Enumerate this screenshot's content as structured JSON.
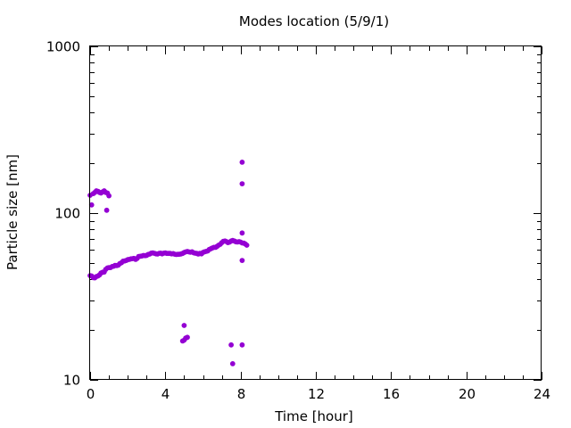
{
  "chart_data": {
    "type": "scatter",
    "title": "Modes location (5/9/1)",
    "xlabel": "Time [hour]",
    "ylabel": "Particle size [nm]",
    "xlim": [
      0,
      24
    ],
    "ylim": [
      10,
      1000
    ],
    "yscale": "log",
    "grid": false,
    "x_ticks": [
      0,
      4,
      8,
      12,
      16,
      20,
      24
    ],
    "y_ticks": [
      10,
      100,
      1000
    ],
    "x_tick_labels": [
      "0",
      "4",
      "8",
      "12",
      "16",
      "20",
      "24"
    ],
    "y_tick_labels": [
      "10",
      "100",
      "1000"
    ],
    "marker_color": "#9400d3",
    "series": [
      {
        "points": [
          [
            0.0,
            42.2
          ],
          [
            0.08,
            42.0
          ],
          [
            0.17,
            41.0
          ],
          [
            0.25,
            40.9
          ],
          [
            0.33,
            41.6
          ],
          [
            0.42,
            42.0
          ],
          [
            0.5,
            42.6
          ],
          [
            0.58,
            43.7
          ],
          [
            0.67,
            44.2
          ],
          [
            0.75,
            44.3
          ],
          [
            0.83,
            46.0
          ],
          [
            0.92,
            46.9
          ],
          [
            1.0,
            47.1
          ],
          [
            1.08,
            47.1
          ],
          [
            1.17,
            47.8
          ],
          [
            1.25,
            48.0
          ],
          [
            1.33,
            48.6
          ],
          [
            1.42,
            48.5
          ],
          [
            1.5,
            48.8
          ],
          [
            1.58,
            49.8
          ],
          [
            1.67,
            50.4
          ],
          [
            1.75,
            51.5
          ],
          [
            1.83,
            51.6
          ],
          [
            1.92,
            52.0
          ],
          [
            2.0,
            52.6
          ],
          [
            2.08,
            52.8
          ],
          [
            2.17,
            53.2
          ],
          [
            2.25,
            53.3
          ],
          [
            2.33,
            53.5
          ],
          [
            2.42,
            52.8
          ],
          [
            2.5,
            53.5
          ],
          [
            2.58,
            54.9
          ],
          [
            2.67,
            55.1
          ],
          [
            2.75,
            55.3
          ],
          [
            2.83,
            55.7
          ],
          [
            2.92,
            55.6
          ],
          [
            3.0,
            55.7
          ],
          [
            3.08,
            56.5
          ],
          [
            3.17,
            56.8
          ],
          [
            3.25,
            57.5
          ],
          [
            3.33,
            57.7
          ],
          [
            3.42,
            57.4
          ],
          [
            3.5,
            57.0
          ],
          [
            3.58,
            56.8
          ],
          [
            3.67,
            57.4
          ],
          [
            3.75,
            57.5
          ],
          [
            3.83,
            57.0
          ],
          [
            3.92,
            57.5
          ],
          [
            4.0,
            57.7
          ],
          [
            4.08,
            57.3
          ],
          [
            4.17,
            57.3
          ],
          [
            4.25,
            57.3
          ],
          [
            4.33,
            57.0
          ],
          [
            4.42,
            57.2
          ],
          [
            4.5,
            56.7
          ],
          [
            4.58,
            56.5
          ],
          [
            4.67,
            56.6
          ],
          [
            4.75,
            56.7
          ],
          [
            4.83,
            56.9
          ],
          [
            4.92,
            57.3
          ],
          [
            5.0,
            58.0
          ],
          [
            5.08,
            58.5
          ],
          [
            5.17,
            58.9
          ],
          [
            5.25,
            58.5
          ],
          [
            5.33,
            58.3
          ],
          [
            5.42,
            58.6
          ],
          [
            5.5,
            57.8
          ],
          [
            5.58,
            57.5
          ],
          [
            5.67,
            57.3
          ],
          [
            5.75,
            56.8
          ],
          [
            5.83,
            57.4
          ],
          [
            5.92,
            57.0
          ],
          [
            6.0,
            58.1
          ],
          [
            6.08,
            58.6
          ],
          [
            6.17,
            59.0
          ],
          [
            6.25,
            59.3
          ],
          [
            6.33,
            60.5
          ],
          [
            6.42,
            61.2
          ],
          [
            6.5,
            61.8
          ],
          [
            6.58,
            62.3
          ],
          [
            6.67,
            62.3
          ],
          [
            6.75,
            63.2
          ],
          [
            6.83,
            64.2
          ],
          [
            6.92,
            65.0
          ],
          [
            7.0,
            66.5
          ],
          [
            7.08,
            67.7
          ],
          [
            7.17,
            68.0
          ],
          [
            7.25,
            67.4
          ],
          [
            7.33,
            66.5
          ],
          [
            7.42,
            67.0
          ],
          [
            7.5,
            68.0
          ],
          [
            7.58,
            68.5
          ],
          [
            7.67,
            68.0
          ],
          [
            7.75,
            67.3
          ],
          [
            7.83,
            67.1
          ],
          [
            7.92,
            67.4
          ],
          [
            8.0,
            67.0
          ],
          [
            8.08,
            66.2
          ],
          [
            8.17,
            66.0
          ],
          [
            8.25,
            65.3
          ],
          [
            8.33,
            64.2
          ],
          [
            0.0,
            128.0
          ],
          [
            0.08,
            112.0
          ],
          [
            0.17,
            131.0
          ],
          [
            0.25,
            133.0
          ],
          [
            0.33,
            136.0
          ],
          [
            0.42,
            135.0
          ],
          [
            0.5,
            133.0
          ],
          [
            0.58,
            132.0
          ],
          [
            0.67,
            134.0
          ],
          [
            0.75,
            136.0
          ],
          [
            0.83,
            133.0
          ],
          [
            0.88,
            104.0
          ],
          [
            0.92,
            132.0
          ],
          [
            1.0,
            127.0
          ],
          [
            4.92,
            17.1
          ],
          [
            5.0,
            17.3
          ],
          [
            5.0,
            21.2
          ],
          [
            5.08,
            17.8
          ],
          [
            5.17,
            18.0
          ],
          [
            7.5,
            16.2
          ],
          [
            7.58,
            12.5
          ],
          [
            8.08,
            16.2
          ],
          [
            8.08,
            52.0
          ],
          [
            8.08,
            76.0
          ],
          [
            8.08,
            150.0
          ],
          [
            8.08,
            202.0
          ]
        ]
      }
    ]
  }
}
